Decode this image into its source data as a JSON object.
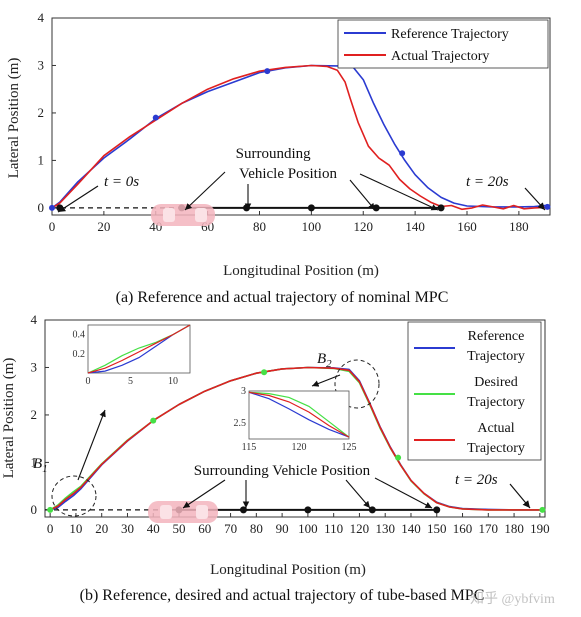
{
  "colors": {
    "reference": "#2b3bd1",
    "actual": "#e02020",
    "desired": "#45e045",
    "axis": "#333333"
  },
  "chart_data": [
    {
      "type": "line",
      "caption": "(a) Reference and actual trajectory of nominal MPC",
      "xlabel": "Longitudinal Position (m)",
      "ylabel": "Lateral Position (m)",
      "xlim": [
        0,
        192
      ],
      "ylim": [
        -0.15,
        4
      ],
      "xticks": [
        0,
        20,
        40,
        60,
        80,
        100,
        120,
        140,
        160,
        180
      ],
      "yticks": [
        0,
        1,
        2,
        3,
        4
      ],
      "legend": {
        "placement": "top-right",
        "entries": [
          "Reference Trajectory",
          "Actual Trajectory"
        ]
      },
      "series": [
        {
          "name": "Reference Trajectory",
          "color": "#2b3bd1",
          "x": [
            0,
            3,
            10,
            20,
            30,
            40,
            50,
            60,
            70,
            80,
            90,
            100,
            110,
            116,
            120,
            124,
            128,
            132,
            136,
            140,
            145,
            150,
            155,
            160,
            170,
            180,
            186,
            190,
            192
          ],
          "y": [
            0,
            0.12,
            0.55,
            1.05,
            1.45,
            1.88,
            2.2,
            2.45,
            2.65,
            2.85,
            2.95,
            3.0,
            2.99,
            2.97,
            2.7,
            2.2,
            1.75,
            1.35,
            1.0,
            0.7,
            0.42,
            0.22,
            0.1,
            0.04,
            0.02,
            0.02,
            0.03,
            0.05,
            0.02
          ]
        },
        {
          "name": "Actual Trajectory",
          "color": "#e02020",
          "x": [
            0,
            3,
            10,
            20,
            30,
            40,
            50,
            60,
            70,
            80,
            90,
            100,
            106,
            110,
            113,
            115,
            118,
            122,
            126,
            130,
            134,
            138,
            142,
            146,
            150,
            154,
            158,
            162,
            166,
            170,
            174,
            178,
            182,
            186,
            190
          ],
          "y": [
            0,
            0.1,
            0.5,
            1.1,
            1.5,
            1.85,
            2.2,
            2.5,
            2.72,
            2.88,
            2.96,
            3.0,
            2.98,
            2.9,
            2.65,
            2.3,
            1.8,
            1.3,
            1.05,
            0.9,
            0.6,
            0.4,
            0.25,
            0.12,
            0.03,
            0.05,
            -0.03,
            0.0,
            0.06,
            0.02,
            -0.02,
            0.05,
            -0.02,
            0.0,
            0.01
          ]
        }
      ],
      "markers": {
        "reference_points": [
          {
            "x": 0,
            "y": 0
          },
          {
            "x": 40,
            "y": 1.9
          },
          {
            "x": 83,
            "y": 2.88
          },
          {
            "x": 135,
            "y": 1.15
          },
          {
            "x": 191,
            "y": 0.02
          }
        ],
        "vehicle_positions": [
          {
            "x": 3,
            "y": 0
          },
          {
            "x": 50,
            "y": 0
          },
          {
            "x": 75,
            "y": 0
          },
          {
            "x": 100,
            "y": 0
          },
          {
            "x": 125,
            "y": 0
          },
          {
            "x": 150,
            "y": 0
          }
        ]
      },
      "annotations": {
        "t_start": "t = 0s",
        "t_end": "t = 20s",
        "surrounding": "Surrounding\nVehicle Position"
      }
    },
    {
      "type": "line",
      "caption": "(b) Reference, desired and actual trajectory of tube-based MPC",
      "xlabel": "Longitudinal Position (m)",
      "ylabel": "Lateral Position (m)",
      "xlim": [
        -2,
        192
      ],
      "ylim": [
        -0.15,
        4
      ],
      "xticks": [
        0,
        10,
        20,
        30,
        40,
        50,
        60,
        70,
        80,
        90,
        100,
        110,
        120,
        130,
        140,
        150,
        160,
        170,
        180,
        190
      ],
      "yticks": [
        0,
        1,
        2,
        3,
        4
      ],
      "legend": {
        "placement": "right",
        "entries": [
          "Reference\nTrajectory",
          "Desired\nTrajectory",
          "Actual\nTrajectory"
        ]
      },
      "series": [
        {
          "name": "Reference Trajectory",
          "color": "#2b3bd1",
          "x": [
            0,
            3,
            6,
            9,
            12,
            20,
            30,
            40,
            50,
            60,
            70,
            80,
            90,
            100,
            110,
            116,
            120,
            124,
            128,
            132,
            136,
            140,
            145,
            150,
            155,
            160,
            170,
            180,
            190
          ],
          "y": [
            0,
            0.05,
            0.18,
            0.3,
            0.45,
            0.95,
            1.45,
            1.88,
            2.22,
            2.5,
            2.72,
            2.88,
            2.97,
            3.0,
            2.99,
            2.96,
            2.72,
            2.25,
            1.75,
            1.32,
            0.95,
            0.62,
            0.35,
            0.16,
            0.07,
            0.03,
            0.01,
            0.0,
            0.0
          ]
        },
        {
          "name": "Desired Trajectory",
          "color": "#45e045",
          "x": [
            0,
            3,
            6,
            9,
            12,
            20,
            30,
            40,
            50,
            60,
            70,
            80,
            90,
            100,
            110,
            116,
            120,
            124,
            128,
            132,
            136,
            140,
            145,
            150,
            155,
            160,
            170,
            180,
            190
          ],
          "y": [
            0,
            0.1,
            0.25,
            0.38,
            0.5,
            0.97,
            1.47,
            1.88,
            2.22,
            2.5,
            2.72,
            2.88,
            2.97,
            3.0,
            2.98,
            2.92,
            2.68,
            2.22,
            1.72,
            1.3,
            0.94,
            0.61,
            0.34,
            0.15,
            0.06,
            0.02,
            0.0,
            0.0,
            0.0
          ]
        },
        {
          "name": "Actual Trajectory",
          "color": "#e02020",
          "x": [
            0,
            3,
            6,
            9,
            12,
            20,
            30,
            40,
            50,
            60,
            70,
            80,
            90,
            100,
            110,
            116,
            120,
            124,
            128,
            132,
            136,
            140,
            145,
            150,
            155,
            160,
            170,
            180,
            190
          ],
          "y": [
            0,
            0.08,
            0.22,
            0.34,
            0.48,
            0.96,
            1.46,
            1.88,
            2.22,
            2.5,
            2.72,
            2.88,
            2.97,
            3.0,
            2.985,
            2.94,
            2.7,
            2.24,
            1.74,
            1.31,
            0.94,
            0.62,
            0.35,
            0.15,
            0.06,
            0.02,
            0.0,
            0.0,
            0.0
          ]
        }
      ],
      "markers": {
        "desired_points": [
          {
            "x": 0,
            "y": 0
          },
          {
            "x": 40,
            "y": 1.88
          },
          {
            "x": 83,
            "y": 2.9
          },
          {
            "x": 135,
            "y": 1.1
          },
          {
            "x": 191,
            "y": 0
          }
        ],
        "vehicle_positions": [
          {
            "x": 50,
            "y": 0
          },
          {
            "x": 75,
            "y": 0
          },
          {
            "x": 100,
            "y": 0
          },
          {
            "x": 125,
            "y": 0
          },
          {
            "x": 150,
            "y": 0
          }
        ]
      },
      "annotations": {
        "b1": "B",
        "b1_sub": "1",
        "b2": "B",
        "b2_sub": "2",
        "t_end": "t = 20s",
        "surrounding": "Surrounding Vehicle Position"
      },
      "insets": [
        {
          "name": "inset-b1",
          "xlim": [
            0,
            12
          ],
          "ylim": [
            0,
            0.5
          ],
          "xticks": [
            0,
            5,
            10
          ],
          "yticks": [
            0.2,
            0.4
          ],
          "series": [
            {
              "color": "#2b3bd1",
              "x": [
                0,
                2,
                4,
                6,
                8,
                10,
                12
              ],
              "y": [
                0,
                0.02,
                0.08,
                0.16,
                0.28,
                0.4,
                0.5
              ]
            },
            {
              "color": "#45e045",
              "x": [
                0,
                2,
                4,
                6,
                8,
                10,
                12
              ],
              "y": [
                0,
                0.08,
                0.18,
                0.26,
                0.32,
                0.4,
                0.5
              ]
            },
            {
              "color": "#e02020",
              "x": [
                0,
                2,
                4,
                6,
                8,
                10,
                12
              ],
              "y": [
                0,
                0.05,
                0.13,
                0.22,
                0.31,
                0.4,
                0.5
              ]
            }
          ]
        },
        {
          "name": "inset-b2",
          "xlim": [
            115,
            125
          ],
          "ylim": [
            2.25,
            3.0
          ],
          "xticks": [
            115,
            120,
            125
          ],
          "yticks": [
            2.5,
            3
          ],
          "series": [
            {
              "color": "#2b3bd1",
              "x": [
                115,
                117,
                119,
                121,
                123,
                125
              ],
              "y": [
                2.98,
                2.88,
                2.72,
                2.55,
                2.4,
                2.28
              ]
            },
            {
              "color": "#45e045",
              "x": [
                115,
                117,
                119,
                121,
                123,
                125
              ],
              "y": [
                2.98,
                2.96,
                2.9,
                2.76,
                2.52,
                2.28
              ]
            },
            {
              "color": "#e02020",
              "x": [
                115,
                117,
                119,
                121,
                123,
                125
              ],
              "y": [
                2.98,
                2.93,
                2.83,
                2.67,
                2.46,
                2.28
              ]
            }
          ]
        }
      ]
    }
  ],
  "watermark": "知乎 @ybfvim"
}
